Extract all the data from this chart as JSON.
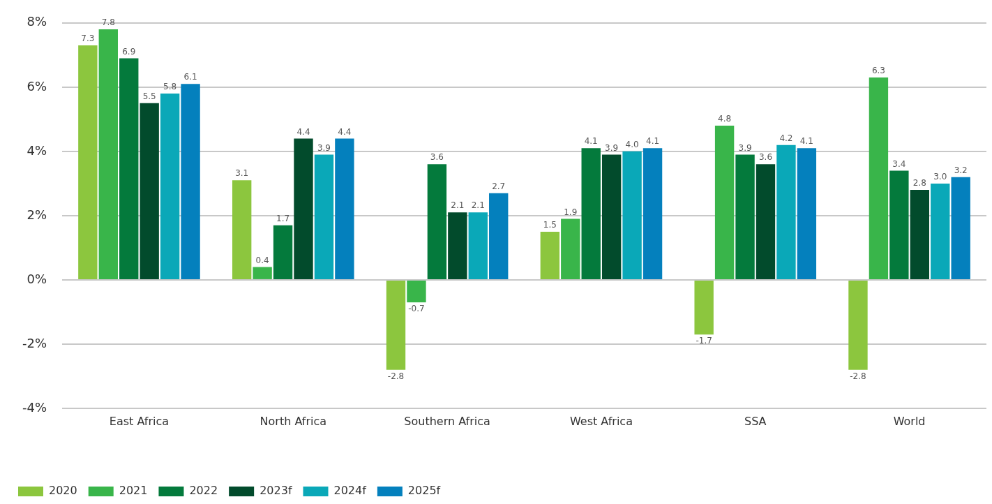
{
  "chart_data": {
    "type": "bar",
    "categories": [
      "East Africa",
      "North Africa",
      "Southern Africa",
      "West Africa",
      "SSA",
      "World"
    ],
    "series": [
      {
        "name": "2020",
        "color": "#8cc63e",
        "values": [
          7.3,
          3.1,
          -2.8,
          1.5,
          -1.7,
          -2.8
        ],
        "value_labels": [
          "7.3",
          "3.1",
          "-2.8",
          "1.5",
          "-1.7",
          "-2.8"
        ]
      },
      {
        "name": "2021",
        "color": "#39b54a",
        "values": [
          7.8,
          0.4,
          -0.7,
          1.9,
          4.8,
          6.3
        ],
        "value_labels": [
          "7.8",
          "0.4",
          "-0.7",
          "1.9",
          "4.8",
          "6.3"
        ]
      },
      {
        "name": "2022",
        "color": "#047a3c",
        "values": [
          6.9,
          1.7,
          3.6,
          4.1,
          3.9,
          3.4
        ],
        "value_labels": [
          "6.9",
          "1.7",
          "3.6",
          "4.1",
          "3.9",
          "3.4"
        ]
      },
      {
        "name": "2023f",
        "color": "#024b2c",
        "values": [
          5.5,
          4.4,
          2.1,
          3.9,
          3.6,
          2.8
        ],
        "value_labels": [
          "5.5",
          "4.4",
          "2.1",
          "3.9",
          "3.6",
          "2.8"
        ]
      },
      {
        "name": "2024f",
        "color": "#0aa8b8",
        "values": [
          5.8,
          3.9,
          2.1,
          4.0,
          4.2,
          3.0
        ],
        "value_labels": [
          "5.8",
          "3.9",
          "2.1",
          "4.0",
          "4.2",
          "3.0"
        ]
      },
      {
        "name": "2025f",
        "color": "#0480bd",
        "values": [
          6.1,
          4.4,
          2.7,
          4.1,
          4.1,
          3.2
        ],
        "value_labels": [
          "6.1",
          "4.4",
          "2.7",
          "4.1",
          "4.1",
          "3.2"
        ]
      }
    ],
    "ylim": [
      -4,
      8
    ],
    "yticks": [
      {
        "value": -4,
        "label": "-4%"
      },
      {
        "value": -2,
        "label": "-2%"
      },
      {
        "value": 0,
        "label": "0%"
      },
      {
        "value": 2,
        "label": "2%"
      },
      {
        "value": 4,
        "label": "4%"
      },
      {
        "value": 6,
        "label": "6%"
      },
      {
        "value": 8,
        "label": "8%"
      }
    ],
    "grid": "y",
    "legend": "bottom left"
  }
}
